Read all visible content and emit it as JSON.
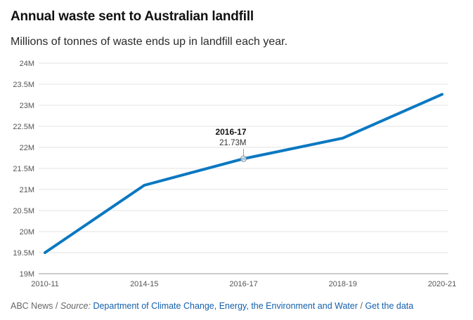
{
  "header": {
    "title": "Annual waste sent to Australian landfill",
    "subtitle": "Millions of tonnes of waste ends up in landfill each year."
  },
  "chart_data": {
    "type": "line",
    "title": "Annual waste sent to Australian landfill",
    "subtitle": "Millions of tonnes of waste ends up in landfill each year.",
    "x": [
      "2010-11",
      "2014-15",
      "2016-17",
      "2018-19",
      "2020-21"
    ],
    "x_ticks": [
      "2010-11",
      "2014-15",
      "2016-17",
      "2018-19",
      "2020-21"
    ],
    "series": [
      {
        "values": [
          19.5,
          21.1,
          21.73,
          22.22,
          23.26
        ]
      }
    ],
    "ylim": [
      19,
      24
    ],
    "y_ticks": [
      19,
      19.5,
      20,
      20.5,
      21,
      21.5,
      22,
      22.5,
      23,
      23.5,
      24
    ],
    "y_tick_labels": [
      "19M",
      "19.5M",
      "20M",
      "20.5M",
      "21M",
      "21.5M",
      "22M",
      "22.5M",
      "23M",
      "23.5M",
      "24M"
    ],
    "grid": true,
    "line_color": "#0a78c2",
    "annotation": {
      "label": "2016-17",
      "value_label": "21.73M",
      "x_index": 2
    }
  },
  "footer": {
    "prefix": "ABC News / ",
    "source_label": "Source:",
    "source_link": "Department of Climate Change, Energy, the Environment and Water",
    "separator": " / ",
    "data_link": "Get the data"
  }
}
